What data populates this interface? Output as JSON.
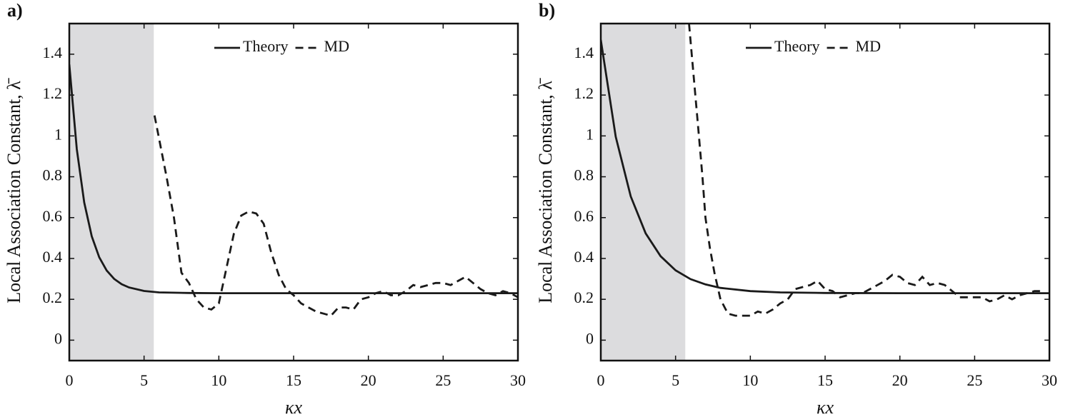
{
  "chart_data": [
    {
      "type": "line",
      "panel_label": "a)",
      "x_label": "κx",
      "y_label": "Local Association Constant, λ̄",
      "xlim": [
        0,
        30
      ],
      "ylim": [
        -0.1,
        1.55
      ],
      "xticks": [
        0,
        5,
        10,
        15,
        20,
        25,
        30
      ],
      "yticks": [
        0,
        0.2,
        0.4,
        0.6,
        0.8,
        1,
        1.2,
        1.4
      ],
      "shaded_xrange": [
        0,
        5.65
      ],
      "shade_color": "#dcdcde",
      "series": [
        {
          "name": "Theory",
          "color": "#1a1a1a",
          "style": "solid",
          "x": [
            0,
            0.5,
            1,
            1.5,
            2,
            2.5,
            3,
            3.5,
            4,
            5,
            6,
            8,
            10,
            30
          ],
          "values": [
            1.35,
            0.935,
            0.674,
            0.509,
            0.406,
            0.341,
            0.3,
            0.274,
            0.258,
            0.241,
            0.234,
            0.231,
            0.23,
            0.23
          ]
        },
        {
          "name": "MD",
          "color": "#1a1a1a",
          "style": "dashed",
          "x": [
            5.7,
            6.5,
            7,
            7.5,
            8,
            8.5,
            9,
            9.5,
            10,
            10.5,
            11,
            11.5,
            12,
            12.5,
            13,
            13.5,
            14,
            14.5,
            15,
            15.5,
            16,
            16.5,
            17,
            17.5,
            18,
            18.5,
            19,
            19.5,
            20,
            20.5,
            21,
            21.5,
            22,
            22.5,
            23,
            23.5,
            24,
            24.5,
            25,
            25.5,
            26,
            26.5,
            27,
            27.5,
            28,
            28.5,
            29,
            29.5,
            30
          ],
          "values": [
            1.1,
            0.8,
            0.6,
            0.33,
            0.28,
            0.2,
            0.16,
            0.15,
            0.18,
            0.35,
            0.52,
            0.61,
            0.63,
            0.62,
            0.57,
            0.43,
            0.32,
            0.25,
            0.22,
            0.18,
            0.16,
            0.14,
            0.13,
            0.12,
            0.16,
            0.16,
            0.15,
            0.2,
            0.21,
            0.23,
            0.24,
            0.22,
            0.22,
            0.24,
            0.27,
            0.26,
            0.27,
            0.28,
            0.28,
            0.27,
            0.29,
            0.31,
            0.28,
            0.25,
            0.23,
            0.22,
            0.24,
            0.23,
            0.21
          ]
        }
      ]
    },
    {
      "type": "line",
      "panel_label": "b)",
      "x_label": "κx",
      "y_label": "Local Association Constant, λ̄",
      "xlim": [
        0,
        30
      ],
      "ylim": [
        -0.1,
        1.55
      ],
      "xticks": [
        0,
        5,
        10,
        15,
        20,
        25,
        30
      ],
      "yticks": [
        0,
        0.2,
        0.4,
        0.6,
        0.8,
        1,
        1.2,
        1.4
      ],
      "shaded_xrange": [
        0,
        5.65
      ],
      "shade_color": "#dcdcde",
      "series": [
        {
          "name": "Theory",
          "color": "#1a1a1a",
          "style": "solid",
          "x": [
            0,
            1,
            2,
            3,
            4,
            5,
            6,
            7,
            8,
            10,
            12,
            15,
            20,
            30
          ],
          "values": [
            1.47,
            0.996,
            0.704,
            0.523,
            0.411,
            0.342,
            0.299,
            0.273,
            0.256,
            0.24,
            0.234,
            0.231,
            0.23,
            0.23
          ]
        },
        {
          "name": "MD",
          "color": "#1a1a1a",
          "style": "dashed",
          "x": [
            5.9,
            6.2,
            6.5,
            6.8,
            7,
            7.3,
            7.6,
            8,
            8.5,
            9,
            9.5,
            10,
            10.5,
            11,
            11.5,
            12,
            12.5,
            13,
            13.5,
            14,
            14.5,
            15,
            15.5,
            16,
            16.5,
            17,
            17.5,
            18,
            18.5,
            19,
            19.5,
            20,
            20.5,
            21,
            21.5,
            22,
            22.5,
            23,
            23.5,
            24,
            24.5,
            25,
            25.5,
            26,
            26.5,
            27,
            27.5,
            28,
            28.5,
            29,
            29.5
          ],
          "values": [
            1.55,
            1.3,
            1.05,
            0.8,
            0.6,
            0.45,
            0.33,
            0.2,
            0.13,
            0.12,
            0.12,
            0.12,
            0.14,
            0.13,
            0.15,
            0.18,
            0.2,
            0.25,
            0.26,
            0.27,
            0.29,
            0.25,
            0.24,
            0.21,
            0.22,
            0.23,
            0.23,
            0.25,
            0.27,
            0.29,
            0.32,
            0.31,
            0.28,
            0.27,
            0.31,
            0.27,
            0.28,
            0.27,
            0.24,
            0.21,
            0.21,
            0.21,
            0.21,
            0.19,
            0.2,
            0.22,
            0.2,
            0.22,
            0.23,
            0.24,
            0.24
          ]
        }
      ]
    }
  ]
}
